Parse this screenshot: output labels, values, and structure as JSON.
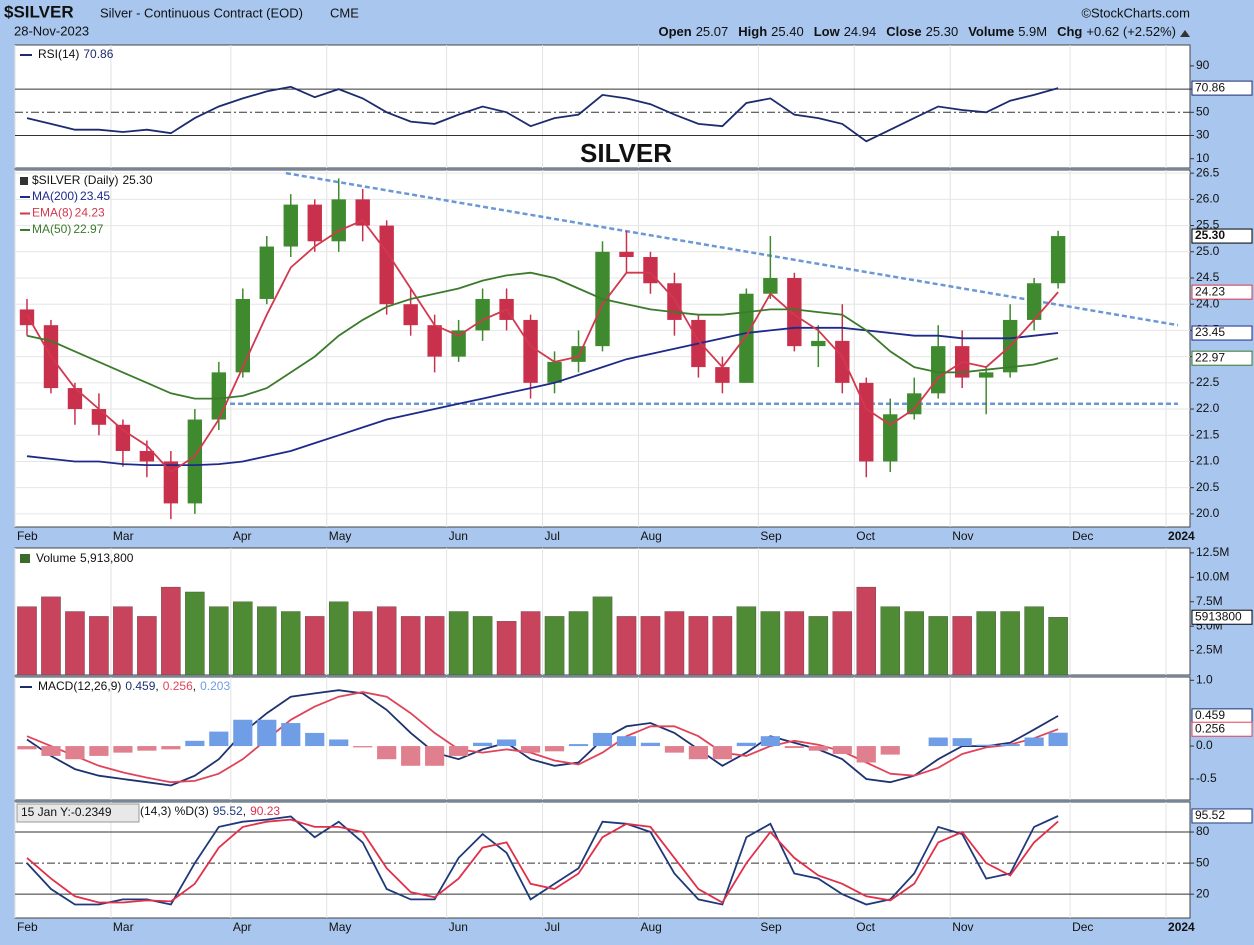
{
  "header": {
    "symbol": "$SILVER",
    "description": "Silver - Continuous Contract (EOD)",
    "exchange": "CME",
    "source": "©StockCharts.com",
    "date": "28-Nov-2023",
    "quote": [
      {
        "label": "Open",
        "value": "25.07"
      },
      {
        "label": "High",
        "value": "25.40"
      },
      {
        "label": "Low",
        "value": "24.94"
      },
      {
        "label": "Close",
        "value": "25.30"
      },
      {
        "label": "Volume",
        "value": "5.9M"
      },
      {
        "label": "Chg",
        "value": "+0.62 (+2.52%)"
      }
    ]
  },
  "annotation": {
    "text": "SILVER",
    "color": "#e03ad6"
  },
  "chart_data": [
    {
      "type": "line",
      "title": "RSI(14)",
      "ylim": [
        2,
        108
      ],
      "yticks": [
        10,
        30,
        50,
        70,
        90
      ],
      "grid": false,
      "levels": [
        {
          "value": 70,
          "dash": false
        },
        {
          "value": 50,
          "dash": true
        },
        {
          "value": 30,
          "dash": false
        }
      ],
      "series": [
        {
          "style": "line",
          "color": "#1c2b6e",
          "flag": true,
          "legend_value": true,
          "values": [
            45,
            40,
            35,
            35,
            33,
            35,
            32,
            45,
            55,
            62,
            68,
            72,
            63,
            70,
            62,
            50,
            42,
            40,
            48,
            55,
            50,
            38,
            45,
            48,
            65,
            62,
            57,
            48,
            40,
            38,
            58,
            62,
            48,
            45,
            40,
            25,
            35,
            45,
            55,
            52,
            50,
            60,
            65,
            70.86,
            null,
            null,
            null,
            null,
            null
          ]
        }
      ]
    },
    {
      "type": "candlestick",
      "name": "$SILVER (Daily)",
      "last_label": "25.30",
      "up_color": "#3f8a2e",
      "down_color": "#c9304c",
      "ylim": [
        19.75,
        26.56
      ],
      "grid": true,
      "yticks": [
        {
          "value": 20,
          "label": "20.0"
        },
        {
          "value": 20.5,
          "label": "20.5"
        },
        {
          "value": 21,
          "label": "21.0"
        },
        {
          "value": 21.5,
          "label": "21.5"
        },
        {
          "value": 22,
          "label": "22.0"
        },
        {
          "value": 22.5,
          "label": "22.5"
        },
        {
          "value": 23,
          "label": "23.0"
        },
        {
          "value": 23.5,
          "label": "23.5"
        },
        {
          "value": 24,
          "label": "24.0"
        },
        {
          "value": 24.5,
          "label": "24.5"
        },
        {
          "value": 25,
          "label": "25.0"
        },
        {
          "value": 25.5,
          "label": "25.5"
        },
        {
          "value": 26,
          "label": "26.0"
        },
        {
          "value": 26.5,
          "label": "26.5"
        }
      ],
      "categories": [
        "Feb",
        null,
        null,
        null,
        "Mar",
        null,
        null,
        null,
        null,
        "Apr",
        null,
        null,
        null,
        "May",
        null,
        null,
        null,
        null,
        "Jun",
        null,
        null,
        null,
        "Jul",
        null,
        null,
        null,
        "Aug",
        null,
        null,
        null,
        null,
        "Sep",
        null,
        null,
        null,
        "Oct",
        null,
        null,
        null,
        "Nov",
        null,
        null,
        null,
        null,
        "Dec",
        null,
        null,
        null,
        "2024"
      ],
      "open": [
        23.9,
        23.6,
        22.4,
        22.0,
        21.7,
        21.2,
        21.0,
        20.2,
        21.8,
        22.7,
        24.1,
        25.1,
        25.9,
        25.2,
        26.0,
        25.5,
        24.0,
        23.6,
        23.0,
        23.5,
        24.1,
        23.7,
        22.5,
        22.9,
        23.2,
        25.0,
        24.9,
        24.4,
        23.7,
        22.8,
        22.5,
        24.2,
        24.5,
        23.2,
        23.3,
        22.5,
        21.0,
        21.9,
        22.3,
        23.2,
        22.6,
        22.7,
        23.7,
        24.4,
        null,
        null,
        null,
        null,
        null
      ],
      "high": [
        24.1,
        23.7,
        22.5,
        22.3,
        21.8,
        21.4,
        21.2,
        22.0,
        22.9,
        24.3,
        25.3,
        26.1,
        26.0,
        26.4,
        26.2,
        25.6,
        24.3,
        23.8,
        23.7,
        24.3,
        24.3,
        23.8,
        23.1,
        23.5,
        25.2,
        25.4,
        25.0,
        24.6,
        23.8,
        23.0,
        24.3,
        25.3,
        24.6,
        23.6,
        24.0,
        22.6,
        22.2,
        22.6,
        23.6,
        23.5,
        22.8,
        24.0,
        24.5,
        25.4,
        null,
        null,
        null,
        null,
        null
      ],
      "low": [
        23.4,
        22.3,
        21.7,
        21.5,
        20.9,
        20.7,
        19.9,
        20.0,
        21.6,
        22.6,
        24.0,
        24.9,
        25.0,
        25.0,
        25.2,
        23.8,
        23.4,
        22.7,
        22.9,
        23.3,
        23.5,
        22.2,
        22.3,
        22.7,
        23.1,
        24.6,
        24.2,
        23.4,
        22.6,
        22.3,
        22.5,
        24.1,
        23.1,
        22.8,
        22.3,
        20.7,
        20.8,
        21.8,
        22.2,
        22.4,
        21.9,
        22.6,
        23.5,
        24.3,
        null,
        null,
        null,
        null,
        null
      ],
      "close": [
        23.6,
        22.4,
        22.0,
        21.7,
        21.2,
        21.0,
        20.2,
        21.8,
        22.7,
        24.1,
        25.1,
        25.9,
        25.2,
        26.0,
        25.5,
        24.0,
        23.6,
        23.0,
        23.5,
        24.1,
        23.7,
        22.5,
        22.9,
        23.2,
        25.0,
        24.9,
        24.4,
        23.7,
        22.8,
        22.5,
        24.2,
        24.5,
        23.2,
        23.3,
        22.5,
        21.0,
        21.9,
        22.3,
        23.2,
        22.6,
        22.7,
        23.7,
        24.4,
        25.3,
        null,
        null,
        null,
        null,
        null
      ],
      "trendlines": [
        {
          "values": [
            26.5,
            23.6
          ],
          "color": "#6b97d6"
        },
        {
          "values": [
            22.1,
            22.1
          ],
          "color": "#6b97d6"
        }
      ],
      "series": [
        {
          "name": "MA(200)",
          "style": "line",
          "color": "#1e2a8a",
          "flag": true,
          "legend_value": true,
          "values": [
            21.1,
            21.05,
            21.0,
            21.0,
            20.95,
            20.93,
            20.93,
            20.93,
            20.95,
            21.0,
            21.1,
            21.2,
            21.35,
            21.5,
            21.65,
            21.8,
            21.9,
            22.0,
            22.1,
            22.2,
            22.3,
            22.4,
            22.5,
            22.65,
            22.8,
            22.95,
            23.05,
            23.15,
            23.25,
            23.35,
            23.45,
            23.5,
            23.55,
            23.55,
            23.55,
            23.5,
            23.45,
            23.4,
            23.4,
            23.35,
            23.35,
            23.35,
            23.4,
            23.45,
            null,
            null,
            null,
            null,
            null
          ]
        },
        {
          "name": "EMA(8)",
          "style": "line",
          "color": "#d2384e",
          "flag": true,
          "legend_value": true,
          "values": [
            23.8,
            23.0,
            22.4,
            22.0,
            21.6,
            21.3,
            20.8,
            21.1,
            21.8,
            22.8,
            23.8,
            24.7,
            25.1,
            25.4,
            25.6,
            25.0,
            24.3,
            23.6,
            23.4,
            23.7,
            23.9,
            23.2,
            22.9,
            23.0,
            24.0,
            24.6,
            24.6,
            24.1,
            23.3,
            22.8,
            23.4,
            24.2,
            23.8,
            23.5,
            23.0,
            22.0,
            21.7,
            22.0,
            22.6,
            22.9,
            22.8,
            23.2,
            23.7,
            24.23,
            null,
            null,
            null,
            null,
            null
          ]
        },
        {
          "name": "MA(50)",
          "style": "line",
          "color": "#3c7a2c",
          "flag": true,
          "legend_value": true,
          "values": [
            23.4,
            23.3,
            23.1,
            22.9,
            22.7,
            22.5,
            22.3,
            22.2,
            22.2,
            22.25,
            22.4,
            22.7,
            23.0,
            23.4,
            23.7,
            23.95,
            24.1,
            24.2,
            24.3,
            24.45,
            24.55,
            24.6,
            24.5,
            24.3,
            24.1,
            24.0,
            23.9,
            23.85,
            23.8,
            23.8,
            23.85,
            23.9,
            23.9,
            23.85,
            23.8,
            23.5,
            23.1,
            22.8,
            22.7,
            22.7,
            22.75,
            22.8,
            22.85,
            22.97,
            null,
            null,
            null,
            null,
            null
          ]
        }
      ]
    },
    {
      "type": "bar",
      "title": "Volume",
      "last_label": "5,913,800",
      "up_color": "#4f8a35",
      "down_color": "#c8445c",
      "ylim": [
        0,
        13000000
      ],
      "grid": false,
      "yticks": [
        {
          "value": 2500000,
          "label": "2.5M"
        },
        {
          "value": 5000000,
          "label": "5.0M"
        },
        {
          "value": 7500000,
          "label": "7.5M"
        },
        {
          "value": 10000000,
          "label": "10.0M"
        },
        {
          "value": 12500000,
          "label": "12.5M"
        }
      ],
      "series": [
        {
          "style": "volume",
          "color": "#444",
          "flag": true,
          "values": [
            7000000,
            8000000,
            6500000,
            6000000,
            7000000,
            6000000,
            9000000,
            8500000,
            7000000,
            7500000,
            7000000,
            6500000,
            6000000,
            7500000,
            6500000,
            7000000,
            6000000,
            6000000,
            6500000,
            6000000,
            5500000,
            6500000,
            6000000,
            6500000,
            8000000,
            6000000,
            6000000,
            6500000,
            6000000,
            6000000,
            7000000,
            6500000,
            6500000,
            6000000,
            6500000,
            9000000,
            7000000,
            6500000,
            6000000,
            6000000,
            6500000,
            6500000,
            7000000,
            5913800,
            null,
            null,
            null,
            null,
            null
          ]
        }
      ]
    },
    {
      "type": "line",
      "title": "MACD(12,26,9)",
      "separator": ",",
      "ylim": [
        -0.82,
        1.05
      ],
      "grid": false,
      "yticks": [
        {
          "value": 1,
          "label": "1.0"
        },
        {
          "value": 0,
          "label": "0.0"
        },
        {
          "value": -0.5,
          "label": "-0.5"
        }
      ],
      "series": [
        {
          "style": "line",
          "color": "#1f3270",
          "flag": true,
          "legend_value": true,
          "values": [
            0.1,
            -0.15,
            -0.35,
            -0.45,
            -0.5,
            -0.55,
            -0.6,
            -0.45,
            -0.2,
            0.2,
            0.5,
            0.75,
            0.8,
            0.85,
            0.8,
            0.55,
            0.2,
            -0.1,
            -0.2,
            -0.05,
            0.05,
            -0.2,
            -0.3,
            -0.25,
            0.1,
            0.3,
            0.35,
            0.2,
            -0.05,
            -0.3,
            -0.1,
            0.15,
            0.05,
            -0.05,
            -0.2,
            -0.5,
            -0.55,
            -0.45,
            -0.2,
            0.0,
            0.0,
            0.05,
            0.25,
            0.459,
            null,
            null,
            null,
            null,
            null
          ]
        },
        {
          "style": "line",
          "color": "#e0445a",
          "flag": true,
          "legend_value": true,
          "values": [
            0.15,
            0.0,
            -0.15,
            -0.3,
            -0.4,
            -0.48,
            -0.55,
            -0.53,
            -0.42,
            -0.2,
            0.1,
            0.4,
            0.6,
            0.75,
            0.82,
            0.75,
            0.5,
            0.2,
            -0.05,
            -0.1,
            -0.05,
            -0.1,
            -0.22,
            -0.28,
            -0.1,
            0.15,
            0.3,
            0.3,
            0.15,
            -0.1,
            -0.15,
            0.0,
            0.08,
            0.02,
            -0.08,
            -0.25,
            -0.42,
            -0.45,
            -0.33,
            -0.12,
            -0.02,
            0.02,
            0.12,
            0.256,
            null,
            null,
            null,
            null,
            null
          ]
        },
        {
          "style": "histogram",
          "color": "#6f9de6",
          "negative_color": "#e0808e",
          "legend_value": true,
          "values": [
            -0.05,
            -0.15,
            -0.2,
            -0.15,
            -0.1,
            -0.07,
            -0.05,
            0.08,
            0.22,
            0.4,
            0.4,
            0.35,
            0.2,
            0.1,
            -0.02,
            -0.2,
            -0.3,
            -0.3,
            -0.15,
            0.05,
            0.1,
            -0.1,
            -0.08,
            0.03,
            0.2,
            0.15,
            0.05,
            -0.1,
            -0.2,
            -0.2,
            0.05,
            0.15,
            -0.03,
            -0.07,
            -0.12,
            -0.25,
            -0.13,
            0.0,
            0.13,
            0.12,
            0.02,
            0.03,
            0.13,
            0.203,
            null,
            null,
            null,
            null,
            null
          ]
        }
      ]
    },
    {
      "type": "line",
      "title": "(14,3) %D(3)",
      "separator": ",",
      "tooltip": "15 Jan Y:-0.2349",
      "ylim": [
        -3,
        109
      ],
      "yticks": [
        20,
        50,
        80
      ],
      "grid": false,
      "levels": [
        {
          "value": 80,
          "dash": false
        },
        {
          "value": 50,
          "dash": true
        },
        {
          "value": 20,
          "dash": false
        }
      ],
      "categories": [
        "Feb",
        null,
        null,
        null,
        "Mar",
        null,
        null,
        null,
        null,
        "Apr",
        null,
        null,
        null,
        "May",
        null,
        null,
        null,
        null,
        "Jun",
        null,
        null,
        null,
        "Jul",
        null,
        null,
        null,
        "Aug",
        null,
        null,
        null,
        null,
        "Sep",
        null,
        null,
        null,
        "Oct",
        null,
        null,
        null,
        "Nov",
        null,
        null,
        null,
        null,
        "Dec",
        null,
        null,
        null,
        "2024"
      ],
      "series": [
        {
          "style": "line",
          "color": "#1f3a7a",
          "flag": true,
          "legend_value": true,
          "values": [
            50,
            25,
            10,
            10,
            15,
            15,
            10,
            50,
            85,
            90,
            92,
            95,
            75,
            90,
            70,
            25,
            15,
            15,
            55,
            78,
            60,
            15,
            30,
            45,
            90,
            88,
            80,
            40,
            15,
            10,
            75,
            88,
            40,
            35,
            20,
            10,
            15,
            40,
            85,
            78,
            35,
            40,
            85,
            95.52,
            null,
            null,
            null,
            null,
            null
          ]
        },
        {
          "style": "line",
          "color": "#e0304a",
          "legend_value": true,
          "values": [
            55,
            35,
            18,
            12,
            12,
            14,
            13,
            30,
            65,
            85,
            90,
            92,
            85,
            85,
            80,
            45,
            22,
            17,
            35,
            65,
            70,
            30,
            25,
            40,
            75,
            88,
            85,
            55,
            25,
            12,
            50,
            80,
            55,
            38,
            30,
            18,
            14,
            30,
            70,
            80,
            50,
            38,
            70,
            90.23,
            null,
            null,
            null,
            null,
            null
          ]
        }
      ]
    }
  ]
}
